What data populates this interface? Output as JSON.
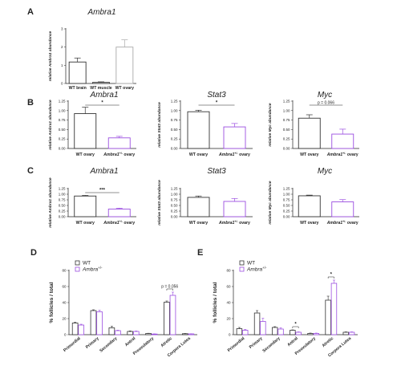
{
  "chart_data": [
    {
      "panel": "A",
      "type": "bar",
      "title": "Ambra1",
      "ylabel": "relative Ambra1 abundance",
      "ylim": [
        0,
        3
      ],
      "yticks": [
        "0",
        "1",
        "2",
        "3"
      ],
      "categories": [
        "WT brain",
        "WT muscle",
        "WT ovary"
      ],
      "values": [
        1.18,
        0.06,
        2.0
      ],
      "errors": [
        0.22,
        0.03,
        0.4
      ],
      "colors": [
        "#333333",
        "#333333",
        "#aaaaaa"
      ],
      "annotations": []
    },
    {
      "panel": "B",
      "type": "bar",
      "title": "Ambra1",
      "ylabel": "relative Ambra1 abundance",
      "ylim": [
        0,
        1.25
      ],
      "yticks": [
        "0.00",
        "0.25",
        "0.50",
        "0.75",
        "1.00",
        "1.25"
      ],
      "categories": [
        "WT ovary",
        "Ambra1+/- ovary"
      ],
      "values": [
        0.92,
        0.28
      ],
      "errors": [
        0.17,
        0.04
      ],
      "colors": [
        "#333333",
        "#9b4ee0"
      ],
      "annotations": [
        {
          "text": "*"
        }
      ]
    },
    {
      "panel": "",
      "type": "bar",
      "title": "Stat3",
      "ylabel": "relative Stat3 abundance",
      "ylim": [
        0,
        1.25
      ],
      "yticks": [
        "0.00",
        "0.25",
        "0.50",
        "0.75",
        "1.00",
        "1.25"
      ],
      "categories": [
        "WT ovary",
        "Ambra1+/- ovary"
      ],
      "values": [
        0.97,
        0.57
      ],
      "errors": [
        0.04,
        0.09
      ],
      "colors": [
        "#333333",
        "#9b4ee0"
      ],
      "annotations": [
        {
          "text": "*"
        }
      ]
    },
    {
      "panel": "",
      "type": "bar",
      "title": "Myc",
      "ylabel": "relative Myc abundance",
      "ylim": [
        0,
        1.25
      ],
      "yticks": [
        "0.00",
        "0.25",
        "0.50",
        "0.75",
        "1.00",
        "1.25"
      ],
      "categories": [
        "WT ovary",
        "Ambra1+/- ovary"
      ],
      "values": [
        0.8,
        0.38
      ],
      "errors": [
        0.09,
        0.13
      ],
      "colors": [
        "#333333",
        "#9b4ee0"
      ],
      "annotations": [
        {
          "text": "p = 0.066"
        }
      ]
    },
    {
      "panel": "C",
      "type": "bar",
      "title": "Ambra1",
      "ylabel": "relative Ambra1 abundance",
      "ylim": [
        0,
        1.25
      ],
      "yticks": [
        "0.00",
        "0.25",
        "0.50",
        "0.75",
        "1.00",
        "1.25"
      ],
      "categories": [
        "WT ovary",
        "Ambra1+/- ovary"
      ],
      "values": [
        0.92,
        0.34
      ],
      "errors": [
        0.03,
        0.04
      ],
      "colors": [
        "#333333",
        "#9b4ee0"
      ],
      "annotations": [
        {
          "text": "***"
        }
      ]
    },
    {
      "panel": "",
      "type": "bar",
      "title": "Stat3",
      "ylabel": "relative Stat3 abundance",
      "ylim": [
        0,
        1.25
      ],
      "yticks": [
        "0.00",
        "0.25",
        "0.50",
        "0.75",
        "1.00",
        "1.25"
      ],
      "categories": [
        "WT ovary",
        "Ambra1+/- ovary"
      ],
      "values": [
        0.86,
        0.68
      ],
      "errors": [
        0.06,
        0.13
      ],
      "colors": [
        "#333333",
        "#9b4ee0"
      ],
      "annotations": []
    },
    {
      "panel": "",
      "type": "bar",
      "title": "Myc",
      "ylabel": "relative Myc abundance",
      "ylim": [
        0,
        1.25
      ],
      "yticks": [
        "0.00",
        "0.25",
        "0.50",
        "0.75",
        "1.00",
        "1.25"
      ],
      "categories": [
        "WT ovary",
        "Ambra1+/- ovary"
      ],
      "values": [
        0.93,
        0.66
      ],
      "errors": [
        0.03,
        0.1
      ],
      "colors": [
        "#333333",
        "#9b4ee0"
      ],
      "annotations": []
    },
    {
      "panel": "D",
      "type": "bar",
      "ylabel": "% follicles / total",
      "ylim": [
        0,
        80
      ],
      "yticks": [
        "0",
        "20",
        "40",
        "60",
        "80"
      ],
      "categories": [
        "Primordial",
        "Primary",
        "Secondary",
        "Antral",
        "Preovulatory",
        "Atretic",
        "Corpora Lutea"
      ],
      "series": [
        {
          "name": "WT",
          "color": "#333333",
          "values": [
            14.5,
            30,
            8.5,
            4,
            1.5,
            40.5,
            1.2
          ],
          "errors": [
            1,
            1,
            2,
            0.7,
            0.3,
            1.5,
            0.3
          ]
        },
        {
          "name": "Ambra+/-",
          "color": "#9b4ee0",
          "values": [
            12,
            28.5,
            5,
            4,
            0.8,
            49,
            1
          ],
          "errors": [
            1,
            2,
            0.6,
            0.6,
            0.2,
            4,
            0.2
          ]
        }
      ],
      "annotations": [
        {
          "text": "p = 0.056",
          "category": "Atretic"
        }
      ]
    },
    {
      "panel": "E",
      "type": "bar",
      "ylabel": "% follicles / total",
      "ylim": [
        0,
        80
      ],
      "yticks": [
        "0",
        "20",
        "40",
        "60",
        "80"
      ],
      "categories": [
        "Primordial",
        "Primary",
        "Secondary",
        "Antral",
        "Preovulatory",
        "Atretic",
        "Corpora Lutea"
      ],
      "series": [
        {
          "name": "WT",
          "color": "#333333",
          "values": [
            7.5,
            27,
            9,
            5.5,
            1.5,
            43,
            3
          ],
          "errors": [
            1.5,
            3,
            1,
            0.5,
            0.5,
            5,
            0.5
          ]
        },
        {
          "name": "Ambra+/-",
          "color": "#9b4ee0",
          "values": [
            5.5,
            16.5,
            7,
            3,
            1.5,
            64,
            3
          ],
          "errors": [
            1,
            4,
            1.5,
            0.5,
            0.5,
            4,
            0.5
          ]
        }
      ],
      "annotations": [
        {
          "text": "*",
          "category": "Antral"
        },
        {
          "text": "*",
          "category": "Atretic"
        }
      ]
    }
  ]
}
